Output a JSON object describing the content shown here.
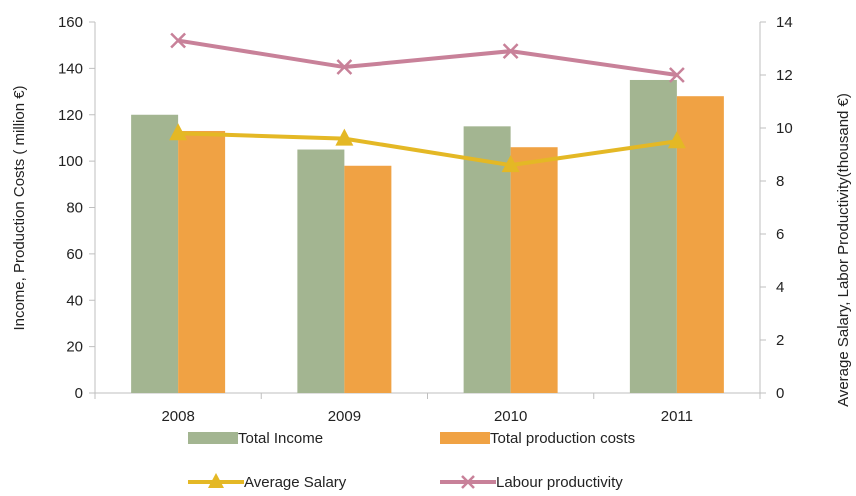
{
  "chart_data": {
    "type": "bar",
    "categories": [
      "2008",
      "2009",
      "2010",
      "2011"
    ],
    "series": [
      {
        "name": "Total Income",
        "kind": "bar",
        "axis": "left",
        "color": "#a3b591",
        "values": [
          120,
          105,
          115,
          135
        ]
      },
      {
        "name": "Total production costs",
        "kind": "bar",
        "axis": "left",
        "color": "#f0a244",
        "values": [
          113,
          98,
          106,
          128
        ]
      },
      {
        "name": "Average Salary",
        "kind": "line",
        "axis": "right",
        "color": "#e4b825",
        "marker": "triangle",
        "values": [
          9.8,
          9.6,
          8.6,
          9.5
        ]
      },
      {
        "name": "Labour productivity",
        "kind": "line",
        "axis": "right",
        "color": "#c88199",
        "marker": "x",
        "values": [
          13.3,
          12.3,
          12.9,
          12.0
        ]
      }
    ],
    "ylabel_left": "Income, Production  Costs ( million €)",
    "ylabel_right": "Average Salary, Labor Productivity(thousand €)",
    "ylim_left": [
      0,
      160
    ],
    "ylim_right": [
      0,
      14
    ],
    "yticks_left": [
      "0",
      "20",
      "40",
      "60",
      "80",
      "100",
      "120",
      "140",
      "160"
    ],
    "yticks_right": [
      "0",
      "2",
      "4",
      "6",
      "8",
      "10",
      "12",
      "14"
    ],
    "grid": false,
    "legend_placement": "bottom"
  }
}
